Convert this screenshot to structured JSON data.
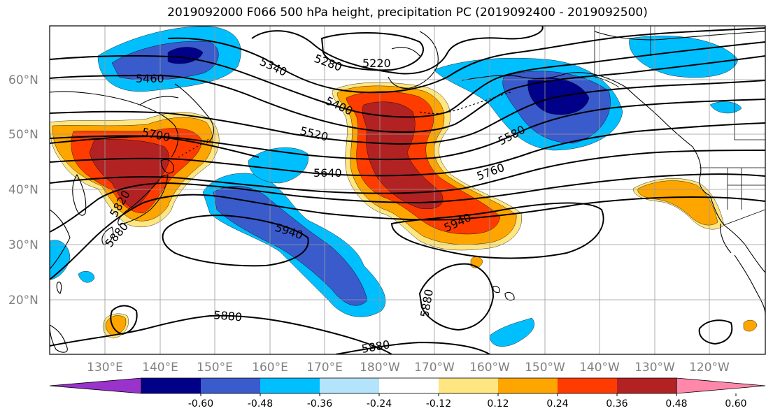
{
  "title": "2019092000 F066 500 hPa height, precipitation PC (2019092400 - 2019092500)",
  "lat_labels": [
    "60°N",
    "50°N",
    "40°N",
    "30°N",
    "20°N"
  ],
  "lon_labels": [
    "130°E",
    "140°E",
    "150°E",
    "160°E",
    "170°E",
    "180°W",
    "170°W",
    "160°W",
    "150°W",
    "140°W",
    "130°W",
    "120°W"
  ],
  "contour_labels": [
    "5340",
    "5280",
    "5220",
    "5460",
    "5400",
    "5700",
    "5520",
    "5580",
    "5640",
    "5760",
    "5820",
    "5880",
    "5940",
    "5940",
    "5880",
    "5880",
    "5880"
  ],
  "colorbar": {
    "ticks": [
      "-0.60",
      "-0.48",
      "-0.36",
      "-0.24",
      "-0.12",
      "0.12",
      "0.24",
      "0.36",
      "0.48",
      "0.60"
    ],
    "colors": [
      "#9933cc",
      "#000088",
      "#3a5bcc",
      "#00bfff",
      "#b3e4fb",
      "#ffffff",
      "#ffe680",
      "#ffa500",
      "#ff3c00",
      "#b22222",
      "#ff88aa"
    ]
  },
  "shading_colors": {
    "neg1": "#00bfff",
    "neg2": "#3a5bcc",
    "neg3": "#000088",
    "pos1": "#ffa500",
    "pos2": "#ff3c00",
    "pos3": "#b22222",
    "edge": "#ffe680"
  }
}
